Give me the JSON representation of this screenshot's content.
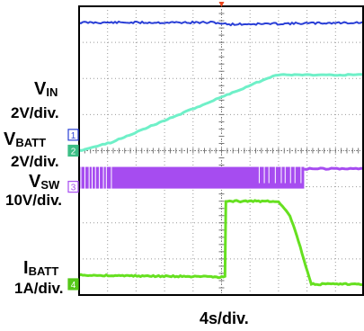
{
  "chart_data": {
    "type": "line",
    "x_scale_label": "4s/div.",
    "grid": true,
    "grid_divisions": {
      "x": 10,
      "y": 8
    },
    "x_range_div": [
      -5,
      5
    ],
    "y_range_div": [
      -4,
      4
    ],
    "channels": [
      {
        "id": "1",
        "symbol": "V",
        "subscript": "IN",
        "scale_label": "2V/div.",
        "color": "#2a3fd6",
        "marker_color": "#2a3fd6",
        "ground_div": 0.44,
        "trace": {
          "x": [
            -5,
            -0.2,
            0.2,
            5
          ],
          "y": [
            3.55,
            3.55,
            3.5,
            3.55
          ]
        }
      },
      {
        "id": "2",
        "symbol": "V",
        "subscript": "BATT",
        "scale_label": "2V/div.",
        "color": "#6ff0c8",
        "marker_color": "#3cbf86",
        "ground_div": 0.0,
        "trace": {
          "x": [
            -5,
            -3.9,
            1.9,
            5
          ],
          "y": [
            0.0,
            0.22,
            2.1,
            2.1
          ]
        }
      },
      {
        "id": "3",
        "symbol": "V",
        "subscript": "SW",
        "scale_label": "10V/div.",
        "color": "#a64cf0",
        "marker_color": "#a64cf0",
        "ground_div": -1.0,
        "burst": {
          "x_start": -5,
          "x_end": 2.9,
          "low_div": -1.05,
          "high_div": -0.45
        },
        "after": {
          "x": [
            2.9,
            5
          ],
          "y": [
            -0.5,
            -0.5
          ]
        }
      },
      {
        "id": "4",
        "symbol": "I",
        "subscript": "BATT",
        "scale_label": "1A/div.",
        "color": "#66e020",
        "marker_color": "#55c818",
        "ground_div": -3.7,
        "trace": {
          "x": [
            -5,
            -0.05,
            0.12,
            0.15,
            2.0,
            2.4,
            2.7,
            2.95,
            3.15,
            5
          ],
          "y": [
            -3.45,
            -3.5,
            -3.5,
            -1.4,
            -1.4,
            -1.8,
            -2.5,
            -3.2,
            -3.7,
            -3.7
          ]
        }
      }
    ],
    "trigger_color": "#e8461e"
  }
}
